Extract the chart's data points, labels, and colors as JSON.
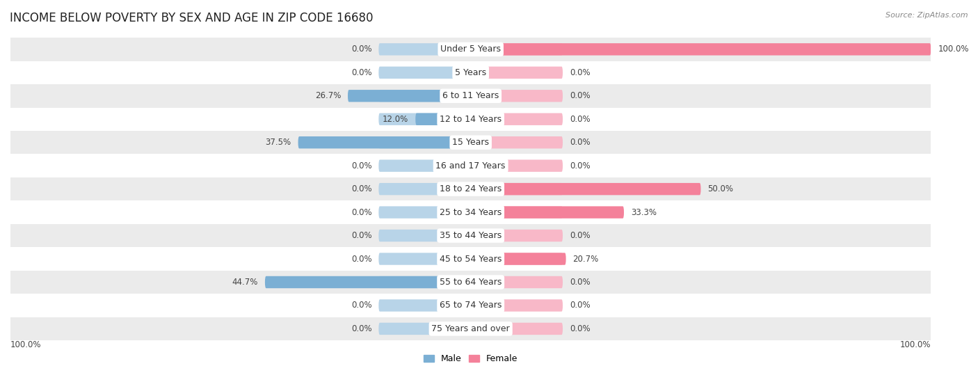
{
  "title": "INCOME BELOW POVERTY BY SEX AND AGE IN ZIP CODE 16680",
  "source": "Source: ZipAtlas.com",
  "categories": [
    "Under 5 Years",
    "5 Years",
    "6 to 11 Years",
    "12 to 14 Years",
    "15 Years",
    "16 and 17 Years",
    "18 to 24 Years",
    "25 to 34 Years",
    "35 to 44 Years",
    "45 to 54 Years",
    "55 to 64 Years",
    "65 to 74 Years",
    "75 Years and over"
  ],
  "male_values": [
    0.0,
    0.0,
    26.7,
    12.0,
    37.5,
    0.0,
    0.0,
    0.0,
    0.0,
    0.0,
    44.7,
    0.0,
    0.0
  ],
  "female_values": [
    100.0,
    0.0,
    0.0,
    0.0,
    0.0,
    0.0,
    50.0,
    33.3,
    0.0,
    20.7,
    0.0,
    0.0,
    0.0
  ],
  "male_color": "#7bafd4",
  "female_color": "#f4819a",
  "male_color_light": "#b8d4e8",
  "female_color_light": "#f8b8c8",
  "male_label": "Male",
  "female_label": "Female",
  "bar_height": 0.52,
  "max_value": 100.0,
  "bg_color": "#ffffff",
  "row_bg_alt": "#ebebeb",
  "title_fontsize": 12,
  "label_fontsize": 9,
  "value_fontsize": 8.5
}
